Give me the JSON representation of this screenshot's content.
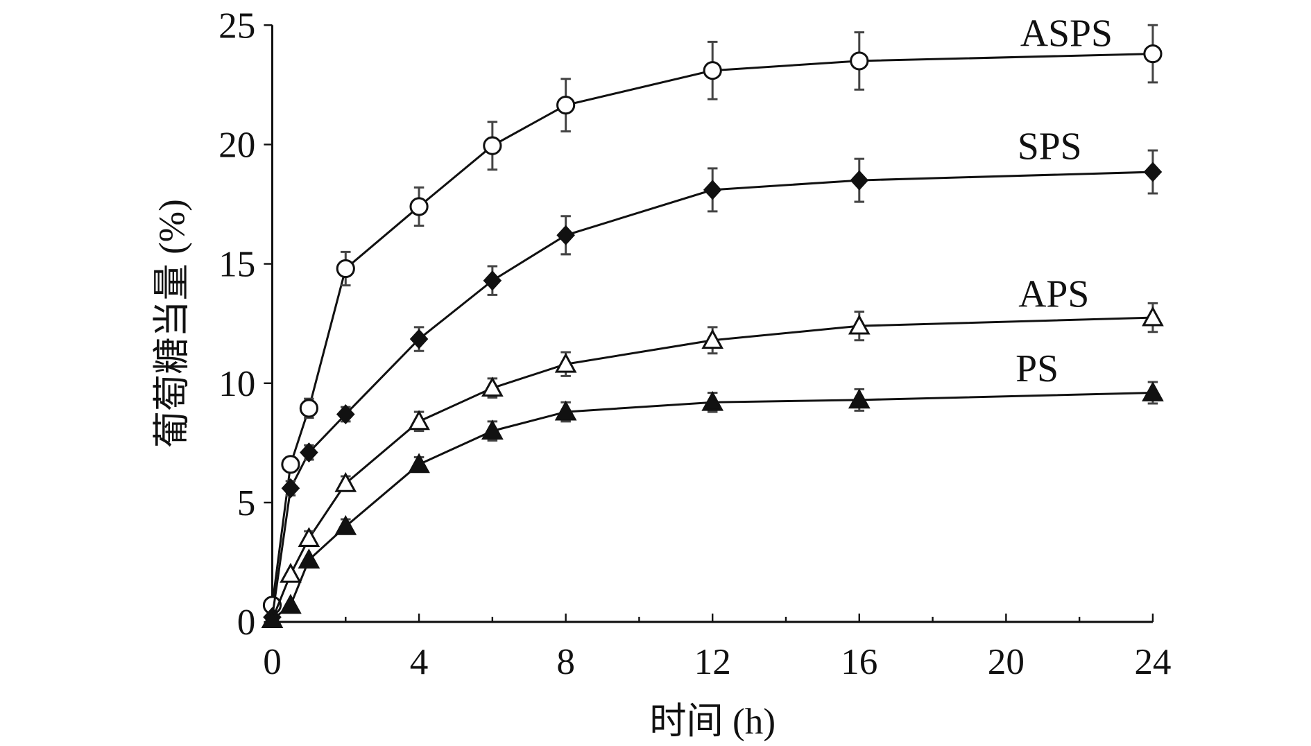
{
  "chart_data": {
    "type": "line",
    "title": "",
    "xlabel": "时间 (h)",
    "ylabel": "葡萄糖当量 (%)",
    "xlim": [
      0,
      24
    ],
    "ylim": [
      0,
      25
    ],
    "xticks": [
      0,
      4,
      8,
      12,
      16,
      20,
      24
    ],
    "xminor": [
      2,
      6,
      10,
      14,
      18,
      22
    ],
    "yticks": [
      0,
      5,
      10,
      15,
      20,
      25
    ],
    "grid": false,
    "x": [
      0,
      0.5,
      1,
      2,
      4,
      6,
      8,
      12,
      16,
      24
    ],
    "series": [
      {
        "name": "ASPS",
        "marker": "open-circle",
        "values": [
          0.7,
          6.6,
          8.95,
          14.8,
          17.4,
          19.95,
          21.65,
          23.1,
          23.5,
          23.8
        ],
        "errors": [
          0.3,
          0.3,
          0.4,
          0.7,
          0.8,
          1.0,
          1.1,
          1.2,
          1.2,
          1.2
        ]
      },
      {
        "name": "SPS",
        "marker": "filled-diamond",
        "values": [
          0.2,
          5.6,
          7.1,
          8.7,
          11.85,
          14.3,
          16.2,
          18.1,
          18.5,
          18.85
        ],
        "errors": [
          0.2,
          0.3,
          0.3,
          0.3,
          0.5,
          0.6,
          0.8,
          0.9,
          0.9,
          0.9
        ]
      },
      {
        "name": "APS",
        "marker": "open-triangle",
        "values": [
          0.1,
          2.0,
          3.5,
          5.8,
          8.4,
          9.8,
          10.8,
          11.8,
          12.4,
          12.75
        ],
        "errors": [
          0.1,
          0.2,
          0.3,
          0.3,
          0.4,
          0.4,
          0.5,
          0.55,
          0.6,
          0.6
        ]
      },
      {
        "name": "PS",
        "marker": "filled-triangle",
        "values": [
          0.1,
          0.7,
          2.6,
          4.0,
          6.6,
          8.0,
          8.8,
          9.2,
          9.3,
          9.6
        ],
        "errors": [
          0.1,
          0.2,
          0.2,
          0.3,
          0.3,
          0.4,
          0.4,
          0.4,
          0.45,
          0.45
        ]
      }
    ]
  }
}
